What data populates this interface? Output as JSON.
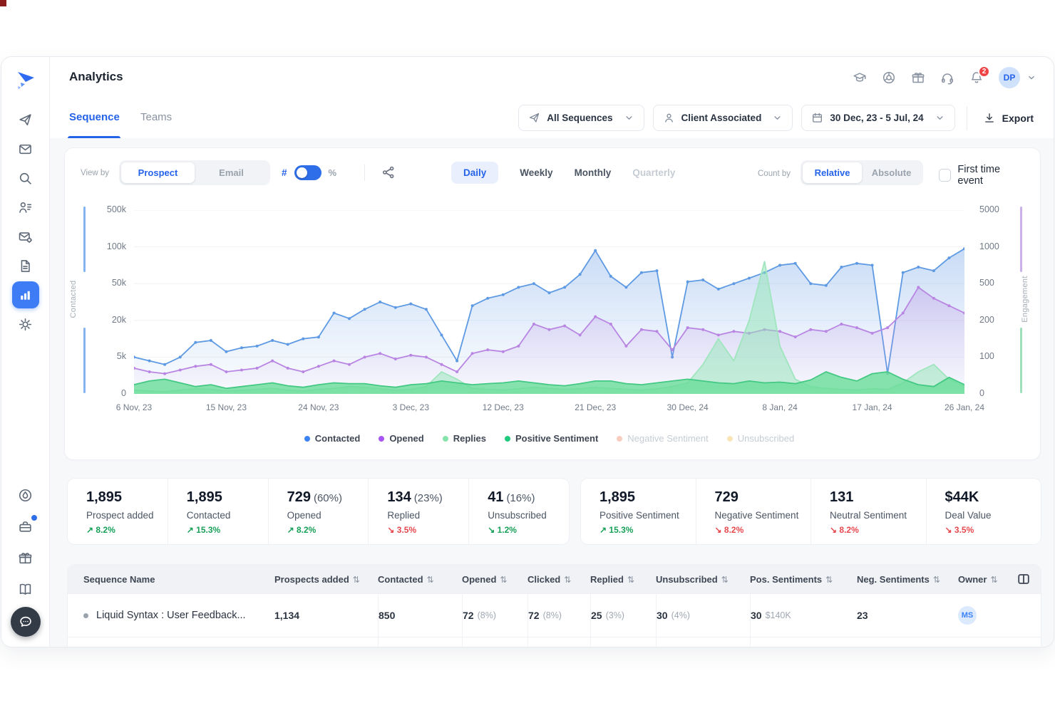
{
  "header": {
    "title": "Analytics",
    "actions": [
      {
        "id": "academy",
        "icon": "graduation-cap-icon"
      },
      {
        "id": "help-center",
        "icon": "life-buoy-icon"
      },
      {
        "id": "rewards",
        "icon": "gift-icon"
      },
      {
        "id": "support",
        "icon": "headset-icon"
      },
      {
        "id": "notifications",
        "icon": "bell-icon",
        "badge": "2"
      }
    ],
    "notification_count": "2",
    "avatar_initials": "DP"
  },
  "tabs": [
    {
      "label": "Sequence",
      "active": true
    },
    {
      "label": "Teams",
      "active": false
    }
  ],
  "filters": {
    "sequences": "All Sequences",
    "client": "Client Associated",
    "date_range": "30 Dec, 23 - 5 Jul, 24",
    "export_label": "Export"
  },
  "chart_controls": {
    "view_by_label": "View by",
    "view_by_options": [
      "Prospect",
      "Email"
    ],
    "view_by_selected": "Prospect",
    "unit_left": "#",
    "unit_right": "%",
    "period_options": [
      "Daily",
      "Weekly",
      "Monthly",
      "Quarterly"
    ],
    "period_selected": "Daily",
    "period_disabled": "Quarterly",
    "count_by_label": "Count by",
    "count_by_options": [
      "Relative",
      "Absolute"
    ],
    "count_by_selected": "Relative",
    "first_time_event_label": "First time event",
    "first_time_event_checked": false
  },
  "chart_data": {
    "type": "line",
    "x_tick_labels": [
      "6 Nov, 23",
      "15 Nov, 23",
      "24 Nov, 23",
      "3 Dec, 23",
      "12 Dec, 23",
      "21 Dec, 23",
      "30 Dec, 24",
      "8 Jan, 24",
      "17 Jan, 24",
      "26 Jan, 24"
    ],
    "left_axis": {
      "label": "Contacted",
      "ticks": [
        "0",
        "5k",
        "20k",
        "50k",
        "100k",
        "500k"
      ],
      "stops": [
        0,
        5000,
        20000,
        50000,
        100000,
        500000
      ]
    },
    "right_axis": {
      "label": "Engagement",
      "ticks": [
        "0",
        "100",
        "200",
        "500",
        "1000",
        "5000"
      ],
      "stops": [
        0,
        100,
        200,
        500,
        1000,
        5000
      ]
    },
    "grid": true,
    "legend_position": "bottom",
    "series": [
      {
        "name": "Contacted",
        "axis": "left",
        "color": "#5e9ae3",
        "fill": "gradient-blue",
        "markers": true,
        "values": [
          5000,
          4500,
          4000,
          5000,
          11000,
          11800,
          7200,
          8800,
          9500,
          11800,
          10200,
          12500,
          13200,
          26000,
          21500,
          29000,
          35000,
          30500,
          33500,
          29000,
          14000,
          4500,
          32000,
          38000,
          41000,
          47000,
          50000,
          42500,
          47000,
          62500,
          95000,
          60000,
          47000,
          65000,
          67500,
          5000,
          52500,
          55000,
          45500,
          50000,
          57500,
          65000,
          75000,
          77500,
          50000,
          48500,
          72500,
          77500,
          75000,
          2800,
          65000,
          72500,
          67500,
          85000,
          97500
        ]
      },
      {
        "name": "Opened",
        "axis": "right",
        "color": "#b985e2",
        "fill": "gradient-purple",
        "markers": true,
        "values": [
          70,
          60,
          55,
          65,
          75,
          80,
          60,
          65,
          70,
          90,
          70,
          60,
          75,
          90,
          80,
          100,
          110,
          95,
          105,
          100,
          80,
          60,
          110,
          120,
          115,
          130,
          190,
          175,
          185,
          160,
          230,
          190,
          130,
          175,
          170,
          120,
          180,
          175,
          160,
          170,
          165,
          175,
          170,
          155,
          175,
          170,
          190,
          180,
          165,
          180,
          260,
          470,
          380,
          320,
          260
        ]
      },
      {
        "name": "Replies",
        "axis": "right",
        "color": "#9fe5bd",
        "fill": "rgba(146,229,181,0.5)",
        "markers": false,
        "values": [
          10,
          8,
          6,
          10,
          14,
          12,
          8,
          10,
          12,
          15,
          10,
          8,
          12,
          15,
          20,
          18,
          14,
          10,
          12,
          20,
          60,
          40,
          15,
          12,
          10,
          14,
          18,
          15,
          12,
          14,
          18,
          15,
          12,
          10,
          14,
          20,
          30,
          80,
          150,
          90,
          200,
          800,
          130,
          40,
          20,
          15,
          12,
          10,
          14,
          12,
          30,
          60,
          80,
          40,
          20
        ]
      },
      {
        "name": "Positive Sentiment",
        "axis": "right",
        "color": "#43c983",
        "fill": "rgba(102,221,150,0.78)",
        "markers": false,
        "values": [
          25,
          35,
          40,
          30,
          20,
          25,
          15,
          20,
          25,
          30,
          22,
          18,
          25,
          30,
          28,
          28,
          22,
          18,
          25,
          28,
          35,
          30,
          25,
          28,
          30,
          35,
          30,
          25,
          22,
          28,
          35,
          35,
          28,
          25,
          30,
          35,
          40,
          35,
          30,
          28,
          35,
          30,
          32,
          28,
          38,
          60,
          45,
          35,
          55,
          60,
          40,
          25,
          20,
          45,
          25
        ]
      }
    ],
    "legend": [
      {
        "label": "Contacted",
        "color": "#3b82f6",
        "active": true
      },
      {
        "label": "Opened",
        "color": "#a855f7",
        "active": true
      },
      {
        "label": "Replies",
        "color": "#86e3ac",
        "active": true
      },
      {
        "label": "Positive Sentiment",
        "color": "#1fc97a",
        "active": true
      },
      {
        "label": "Negative Sentiment",
        "color": "#f2a48c",
        "active": false
      },
      {
        "label": "Unsubscribed",
        "color": "#f2cf7d",
        "active": false
      }
    ]
  },
  "stats": {
    "left": [
      {
        "value": "1,895",
        "suffix": "",
        "label": "Prospect added",
        "trend": "8.2%",
        "direction": "up",
        "positive": true
      },
      {
        "value": "1,895",
        "suffix": "",
        "label": "Contacted",
        "trend": "15.3%",
        "direction": "up",
        "positive": true
      },
      {
        "value": "729",
        "suffix": "(60%)",
        "label": "Opened",
        "trend": "8.2%",
        "direction": "up",
        "positive": true
      },
      {
        "value": "134",
        "suffix": "(23%)",
        "label": "Replied",
        "trend": "3.5%",
        "direction": "down",
        "positive": false
      },
      {
        "value": "41",
        "suffix": "(16%)",
        "label": "Unsubscribed",
        "trend": "1.2%",
        "direction": "down",
        "positive": true
      }
    ],
    "right": [
      {
        "value": "1,895",
        "suffix": "",
        "label": "Positive Sentiment",
        "trend": "15.3%",
        "direction": "up",
        "positive": true
      },
      {
        "value": "729",
        "suffix": "",
        "label": "Negative Sentiment",
        "trend": "8.2%",
        "direction": "down",
        "positive": false
      },
      {
        "value": "131",
        "suffix": "",
        "label": "Neutral Sentiment",
        "trend": "8.2%",
        "direction": "down",
        "positive": false
      },
      {
        "value": "$44K",
        "suffix": "",
        "label": "Deal Value",
        "trend": "3.5%",
        "direction": "down",
        "positive": false
      }
    ]
  },
  "table": {
    "columns": [
      {
        "label": "Sequence Name",
        "sortable": false
      },
      {
        "label": "Prospects added",
        "sortable": true
      },
      {
        "label": "Contacted",
        "sortable": true
      },
      {
        "label": "Opened",
        "sortable": true
      },
      {
        "label": "Clicked",
        "sortable": true
      },
      {
        "label": "Replied",
        "sortable": true
      },
      {
        "label": "Unsubscribed",
        "sortable": true
      },
      {
        "label": "Pos. Sentiments",
        "sortable": true
      },
      {
        "label": "Neg. Sentiments",
        "sortable": true
      },
      {
        "label": "Owner",
        "sortable": true
      }
    ],
    "rows": [
      {
        "name": "Liquid Syntax : User Feedback...",
        "cells": [
          {
            "t": "1,134"
          },
          {
            "t": "850"
          },
          {
            "t": "72",
            "s": "(8%)"
          },
          {
            "t": "72",
            "s": "(8%)"
          },
          {
            "t": "25",
            "s": "(3%)"
          },
          {
            "t": "30",
            "s": "(4%)"
          },
          {
            "t": "30",
            "s": "$140K"
          },
          {
            "t": "23"
          }
        ],
        "owner": "MS"
      }
    ]
  },
  "sidebar": {
    "top": [
      {
        "id": "sequences",
        "icon": "paper-plane-icon",
        "active": false
      },
      {
        "id": "inbox",
        "icon": "envelope-icon",
        "active": false
      },
      {
        "id": "search",
        "icon": "search-icon",
        "active": false
      },
      {
        "id": "prospects",
        "icon": "user-list-icon",
        "active": false
      },
      {
        "id": "email-setup",
        "icon": "mail-gear-icon",
        "active": false
      },
      {
        "id": "templates",
        "icon": "document-icon",
        "active": false
      },
      {
        "id": "analytics",
        "icon": "bar-chart-icon",
        "active": true
      },
      {
        "id": "settings",
        "icon": "gear-icon",
        "active": false
      }
    ],
    "bottom": [
      {
        "id": "whats-new",
        "icon": "flame-icon",
        "badge": false
      },
      {
        "id": "deals",
        "icon": "briefcase-icon",
        "badge": true
      },
      {
        "id": "rewards",
        "icon": "gift-icon",
        "badge": false
      },
      {
        "id": "resources",
        "icon": "book-icon",
        "badge": false
      },
      {
        "id": "chat",
        "icon": "chat-icon",
        "fab": true
      }
    ]
  },
  "colors": {
    "accent": "#2563eb",
    "positive": "#18a058",
    "negative": "#e5484d",
    "chart_blue": "#5e9ae3",
    "chart_purple": "#b985e2",
    "chart_green": "#43c983",
    "chart_pale_green": "#9fe5bd"
  }
}
